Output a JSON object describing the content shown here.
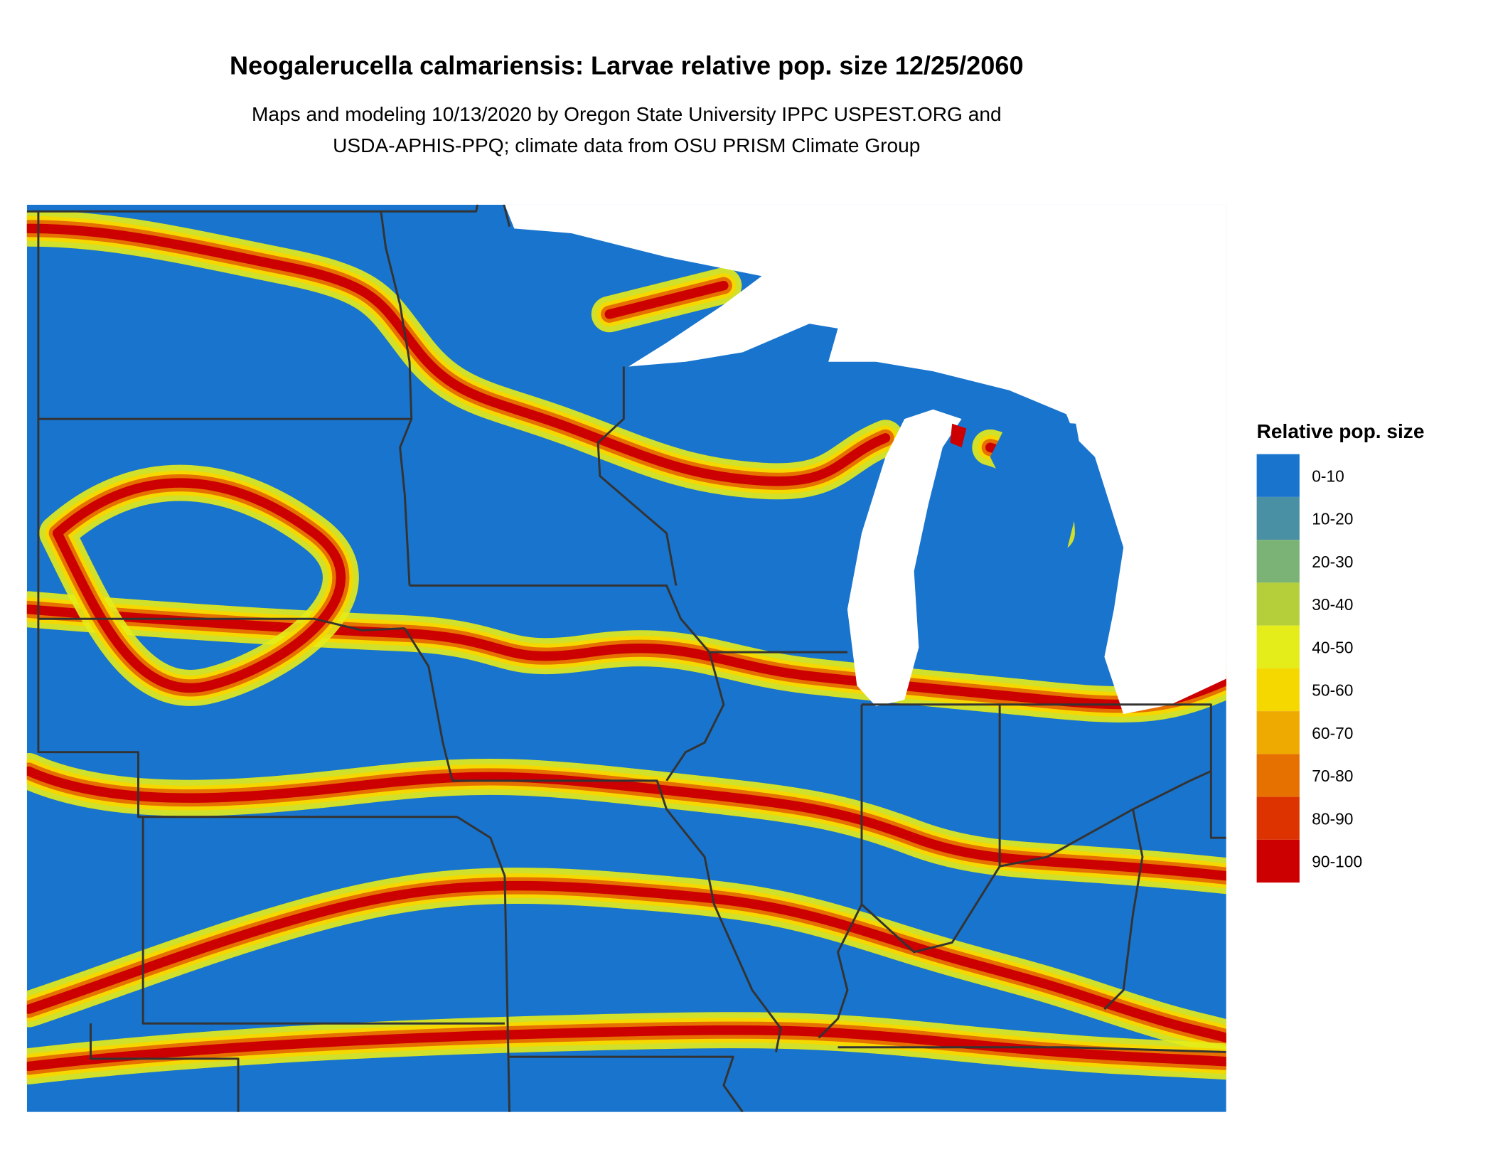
{
  "header": {
    "title": "Neogalerucella calmariensis: Larvae relative pop. size 12/25/2060",
    "subtitle_lines": [
      "Maps and modeling 10/13/2020 by Oregon State University IPPC USPEST.ORG and",
      "USDA-APHIS-PPQ; climate data from OSU PRISM Climate Group"
    ]
  },
  "legend": {
    "title": "Relative pop. size",
    "items": [
      {
        "label": "0-10",
        "color": "#1874cd"
      },
      {
        "label": "10-20",
        "color": "#4a90a4"
      },
      {
        "label": "20-30",
        "color": "#7bb275"
      },
      {
        "label": "30-40",
        "color": "#b5cf3a"
      },
      {
        "label": "40-50",
        "color": "#e4ec1a"
      },
      {
        "label": "50-60",
        "color": "#f5d800"
      },
      {
        "label": "60-70",
        "color": "#eeaa00"
      },
      {
        "label": "70-80",
        "color": "#e67000"
      },
      {
        "label": "80-90",
        "color": "#dd3300"
      },
      {
        "label": "90-100",
        "color": "#cc0000"
      }
    ]
  }
}
